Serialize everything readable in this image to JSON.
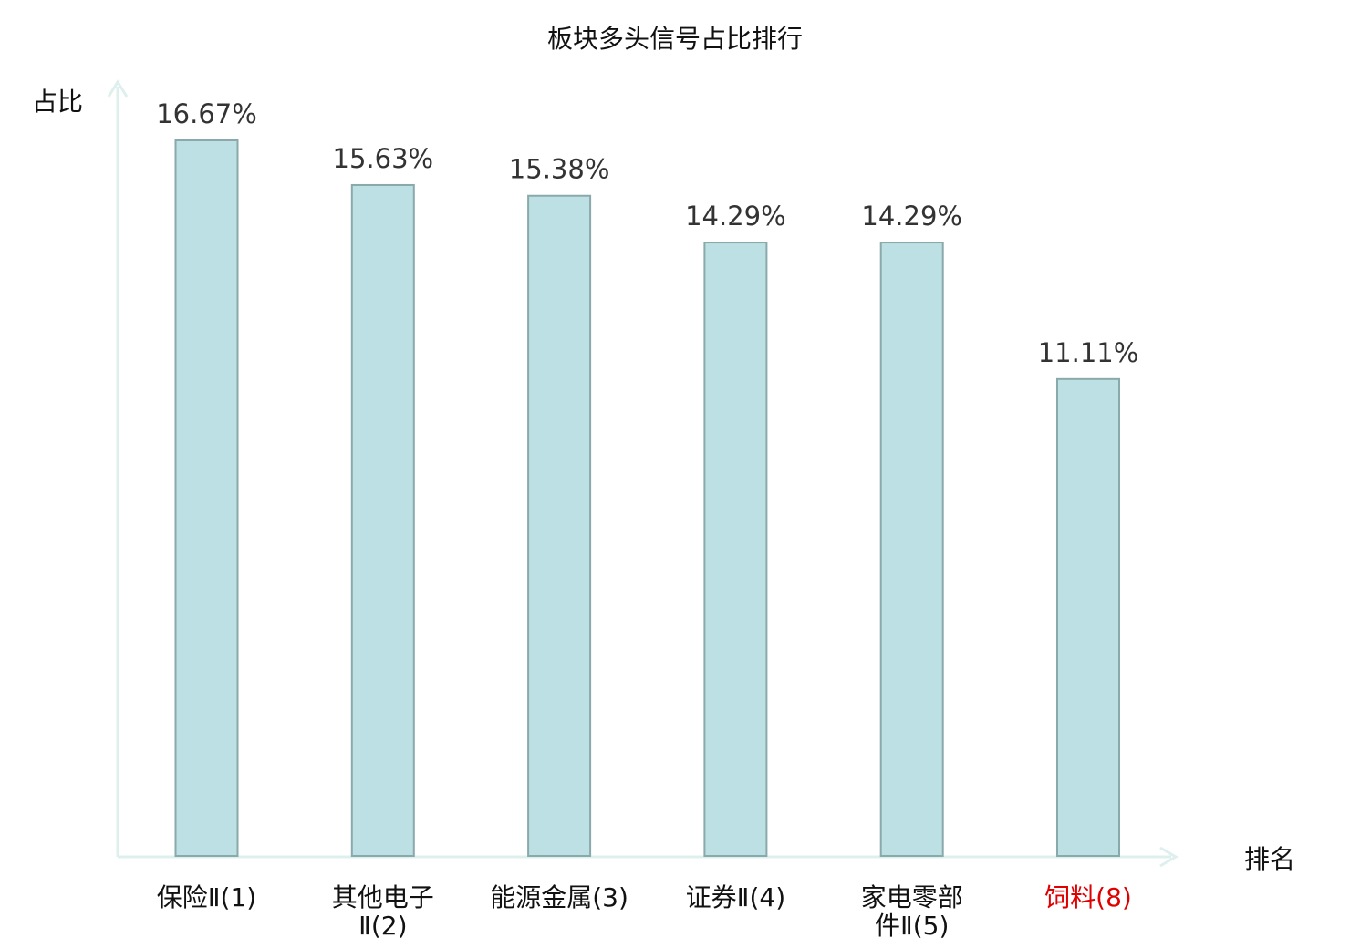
{
  "chart_data": {
    "type": "bar",
    "title": "板块多头信号占比排行",
    "xlabel": "排名",
    "ylabel": "占比",
    "categories": [
      [
        "保险Ⅱ(1)"
      ],
      [
        "其他电子",
        "Ⅱ(2)"
      ],
      [
        "能源金属(3)"
      ],
      [
        "证券Ⅱ(4)"
      ],
      [
        "家电零部",
        "件Ⅱ(5)"
      ],
      [
        "饲料(8)"
      ]
    ],
    "values": [
      16.67,
      15.63,
      15.38,
      14.29,
      14.29,
      11.11
    ],
    "value_labels": [
      "16.67%",
      "15.63%",
      "15.38%",
      "14.29%",
      "14.29%",
      "11.11%"
    ],
    "highlight_index": 5,
    "ylim": [
      0,
      16.67
    ],
    "grid": false,
    "legend": "none",
    "colors": {
      "bar_fill": "#bce0e3",
      "bar_stroke": "#8aa9ab",
      "axis": "#def0ee",
      "label_default": "#111111",
      "label_highlight": "#e00000",
      "value_text": "#333333"
    }
  }
}
